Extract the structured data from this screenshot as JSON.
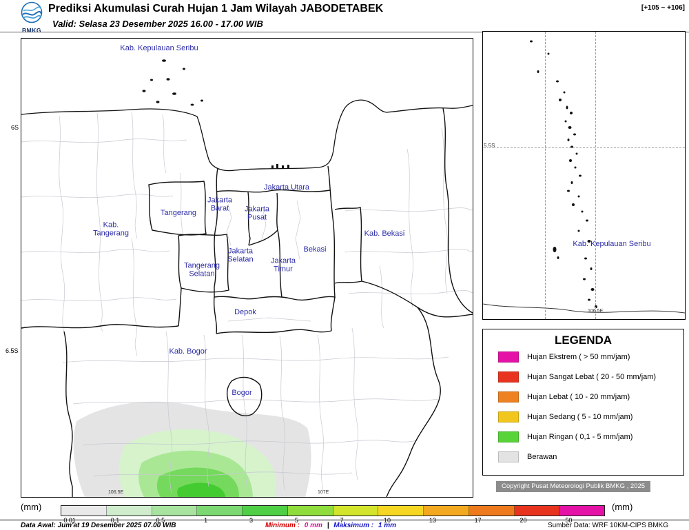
{
  "header": {
    "logo_text": "BMKG",
    "title": "Prediksi Akumulasi Curah Hujan 1 Jam Wilayah JABODETABEK",
    "valid": "Valid: Selasa 23 Desember 2025 16.00 - 17.00 WIB",
    "frame_range": "[+105 ~ +106]"
  },
  "main_map": {
    "labels": [
      {
        "id": "kab-kepulauan-seribu",
        "text": "Kab. Kepulauan Seribu"
      },
      {
        "id": "jakarta-utara",
        "text": "Jakarta Utara"
      },
      {
        "id": "jakarta-barat",
        "text": "Jakarta Barat"
      },
      {
        "id": "jakarta-pusat",
        "text": "Jakarta Pusat"
      },
      {
        "id": "tangerang",
        "text": "Tangerang"
      },
      {
        "id": "kab-tangerang",
        "text": "Kab. Tangerang"
      },
      {
        "id": "jakarta-selatan",
        "text": "Jakarta Selatan"
      },
      {
        "id": "jakarta-timur",
        "text": "Jakarta Timur"
      },
      {
        "id": "bekasi",
        "text": "Bekasi"
      },
      {
        "id": "kab-bekasi",
        "text": "Kab. Bekasi"
      },
      {
        "id": "tangerang-selatan",
        "text": "Tangerang Selatan"
      },
      {
        "id": "depok",
        "text": "Depok"
      },
      {
        "id": "kab-bogor",
        "text": "Kab. Bogor"
      },
      {
        "id": "bogor",
        "text": "Bogor"
      }
    ],
    "y_axis": [
      "6S",
      "6.5S"
    ],
    "x_axis": [
      "106.5E",
      "107E"
    ]
  },
  "inset_map": {
    "label": "Kab. Kepulauan Seribu",
    "y_axis": [
      "5.5S"
    ],
    "x_axis": [
      "106.5E"
    ]
  },
  "legend": {
    "title": "LEGENDA",
    "items": [
      {
        "label": "Hujan Ekstrem ( > 50 mm/jam)",
        "color": "#e412a6"
      },
      {
        "label": "Hujan Sangat Lebat ( 20 - 50 mm/jam)",
        "color": "#e8341f"
      },
      {
        "label": "Hujan Lebat ( 10 - 20 mm/jam)",
        "color": "#ee8122"
      },
      {
        "label": "Hujan Sedang ( 5 - 10 mm/jam)",
        "color": "#f2c71d"
      },
      {
        "label": "Hujan Ringan ( 0,1 - 5 mm/jam)",
        "color": "#58d438"
      },
      {
        "label": "Berawan",
        "color": "#e3e3e3"
      }
    ]
  },
  "copyright": "Copyright Pusat Meteorologi Publik BMKG , 2025",
  "colorbar": {
    "unit_left": "(mm)",
    "unit_right": "(mm)",
    "segments": [
      {
        "label": "0.01",
        "color": "#e9e9e9"
      },
      {
        "label": "0.1",
        "color": "#cfeccc"
      },
      {
        "label": "0.5",
        "color": "#a8e49f"
      },
      {
        "label": "1",
        "color": "#7cd972"
      },
      {
        "label": "3",
        "color": "#4ecf45"
      },
      {
        "label": "5",
        "color": "#8edd3c"
      },
      {
        "label": "7",
        "color": "#d3e42c"
      },
      {
        "label": "10",
        "color": "#f5d723"
      },
      {
        "label": "13",
        "color": "#f2a81f"
      },
      {
        "label": "17",
        "color": "#ee7a1e"
      },
      {
        "label": "20",
        "color": "#e8341f"
      },
      {
        "label": "50",
        "color": "#e412a6"
      }
    ]
  },
  "footer": {
    "data_awal": "Data Awal: Jum'at 19 Desember 2025 07.00 WIB",
    "minimum_label": "Minimum :",
    "minimum_value": "0 mm",
    "separator": "|",
    "maksimum_label": "Maksimum :",
    "maksimum_value": "1 mm",
    "sumber": "Sumber Data: WRF 10KM-CIPS BMKG"
  }
}
